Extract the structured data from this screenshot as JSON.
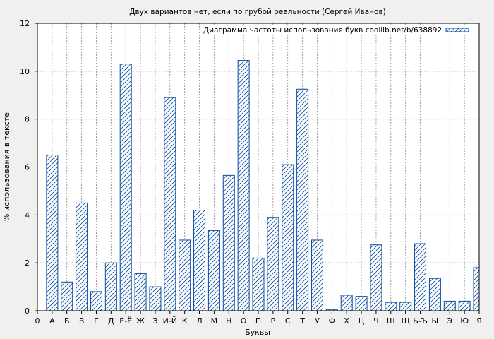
{
  "chart_data": {
    "type": "bar",
    "title": "Двух вариантов нет, если по грубой реальности (Сергей Иванов)",
    "xlabel": "Буквы",
    "ylabel": "% использования в тексте",
    "ylim": [
      0,
      12
    ],
    "y_ticks": [
      0,
      2,
      4,
      6,
      8,
      10,
      12
    ],
    "x_ticks": [
      "0",
      "А",
      "Б",
      "В",
      "Г",
      "Д",
      "Е-Ё",
      "Ж",
      "З",
      "И-Й",
      "К",
      "Л",
      "М",
      "Н",
      "О",
      "П",
      "Р",
      "С",
      "Т",
      "У",
      "Ф",
      "Х",
      "Ц",
      "Ч",
      "Ш",
      "Щ",
      "Ь-Ъ",
      "Ы",
      "Э",
      "Ю",
      "Я"
    ],
    "grid": true,
    "legend_position": "top-right",
    "bar_color": "#0b4ea2",
    "background": "#ffffff",
    "series": [
      {
        "name": "Диаграмма частоты использования букв coollib.net/b/638892",
        "categories": [
          "А",
          "Б",
          "В",
          "Г",
          "Д",
          "Е-Ё",
          "Ж",
          "З",
          "И-Й",
          "К",
          "Л",
          "М",
          "Н",
          "О",
          "П",
          "Р",
          "С",
          "Т",
          "У",
          "Ф",
          "Х",
          "Ц",
          "Ч",
          "Ш",
          "Щ",
          "Ь-Ъ",
          "Ы",
          "Э",
          "Ю",
          "Я"
        ],
        "values": [
          6.5,
          1.2,
          4.5,
          0.8,
          2.0,
          10.3,
          1.55,
          1.0,
          8.9,
          2.95,
          4.2,
          3.35,
          5.65,
          10.45,
          2.2,
          3.9,
          6.1,
          9.25,
          2.95,
          0.05,
          0.65,
          0.6,
          2.75,
          0.35,
          0.35,
          2.8,
          1.35,
          0.4,
          0.4,
          1.8
        ]
      }
    ]
  }
}
